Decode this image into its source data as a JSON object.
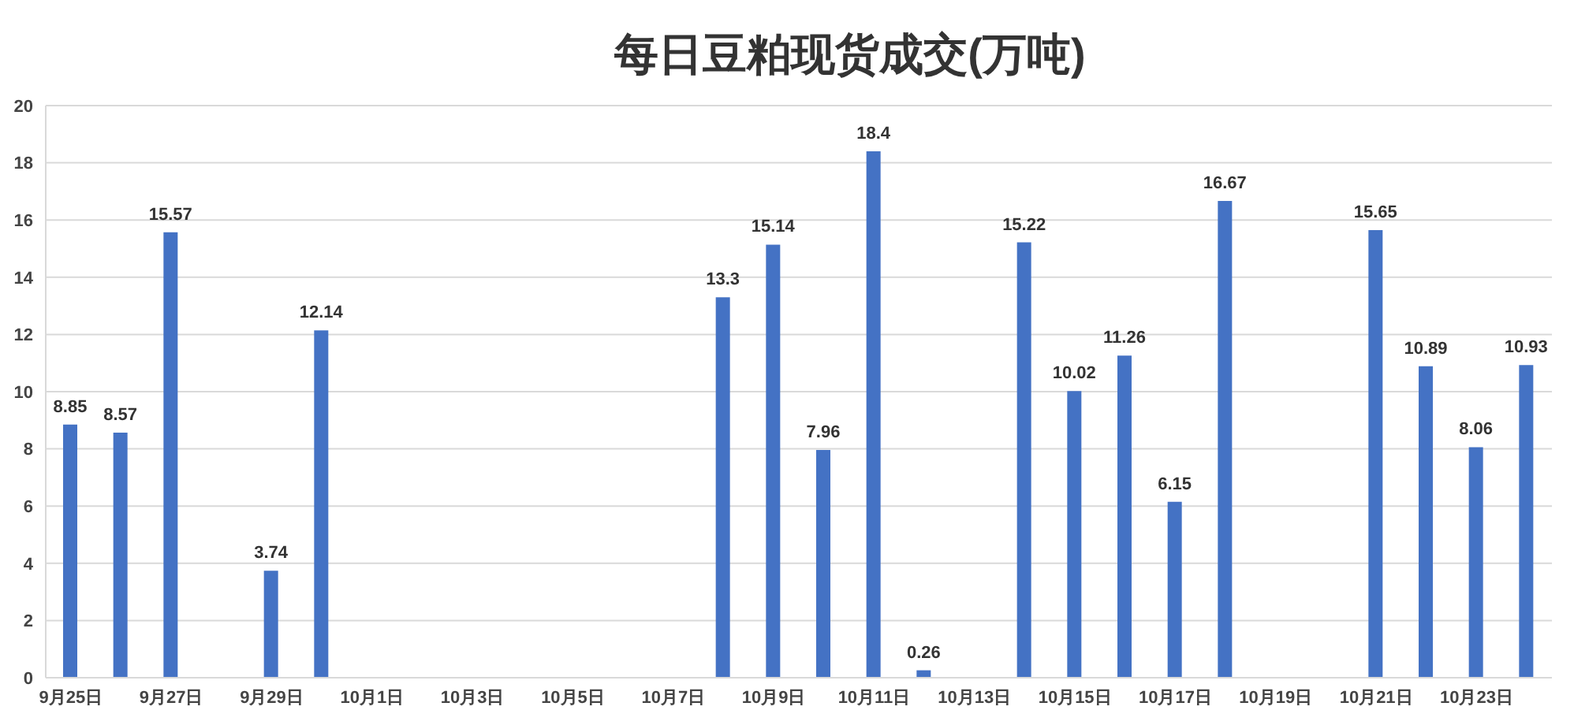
{
  "chart_data": {
    "type": "bar",
    "title": "每日豆粕现货成交(万吨)",
    "categories": [
      "9月25日",
      null,
      "9月27日",
      null,
      "9月29日",
      null,
      "10月1日",
      null,
      "10月3日",
      null,
      "10月5日",
      null,
      "10月7日",
      null,
      "10月9日",
      null,
      "10月11日",
      null,
      "10月13日",
      null,
      "10月15日",
      null,
      "10月17日",
      null,
      "10月19日",
      null,
      "10月21日",
      null,
      "10月23日",
      null
    ],
    "values": [
      8.85,
      8.57,
      15.57,
      null,
      3.74,
      12.14,
      null,
      null,
      null,
      null,
      null,
      null,
      null,
      13.3,
      15.14,
      7.96,
      18.4,
      0.26,
      null,
      15.22,
      10.02,
      11.26,
      6.15,
      16.67,
      null,
      null,
      15.65,
      10.89,
      8.06,
      10.93
    ],
    "color": "#4472c4",
    "ylim": [
      0,
      20
    ],
    "yticks": [
      0,
      2,
      4,
      6,
      8,
      10,
      12,
      14,
      16,
      18,
      20
    ],
    "grid": "y",
    "data_labels": true
  }
}
